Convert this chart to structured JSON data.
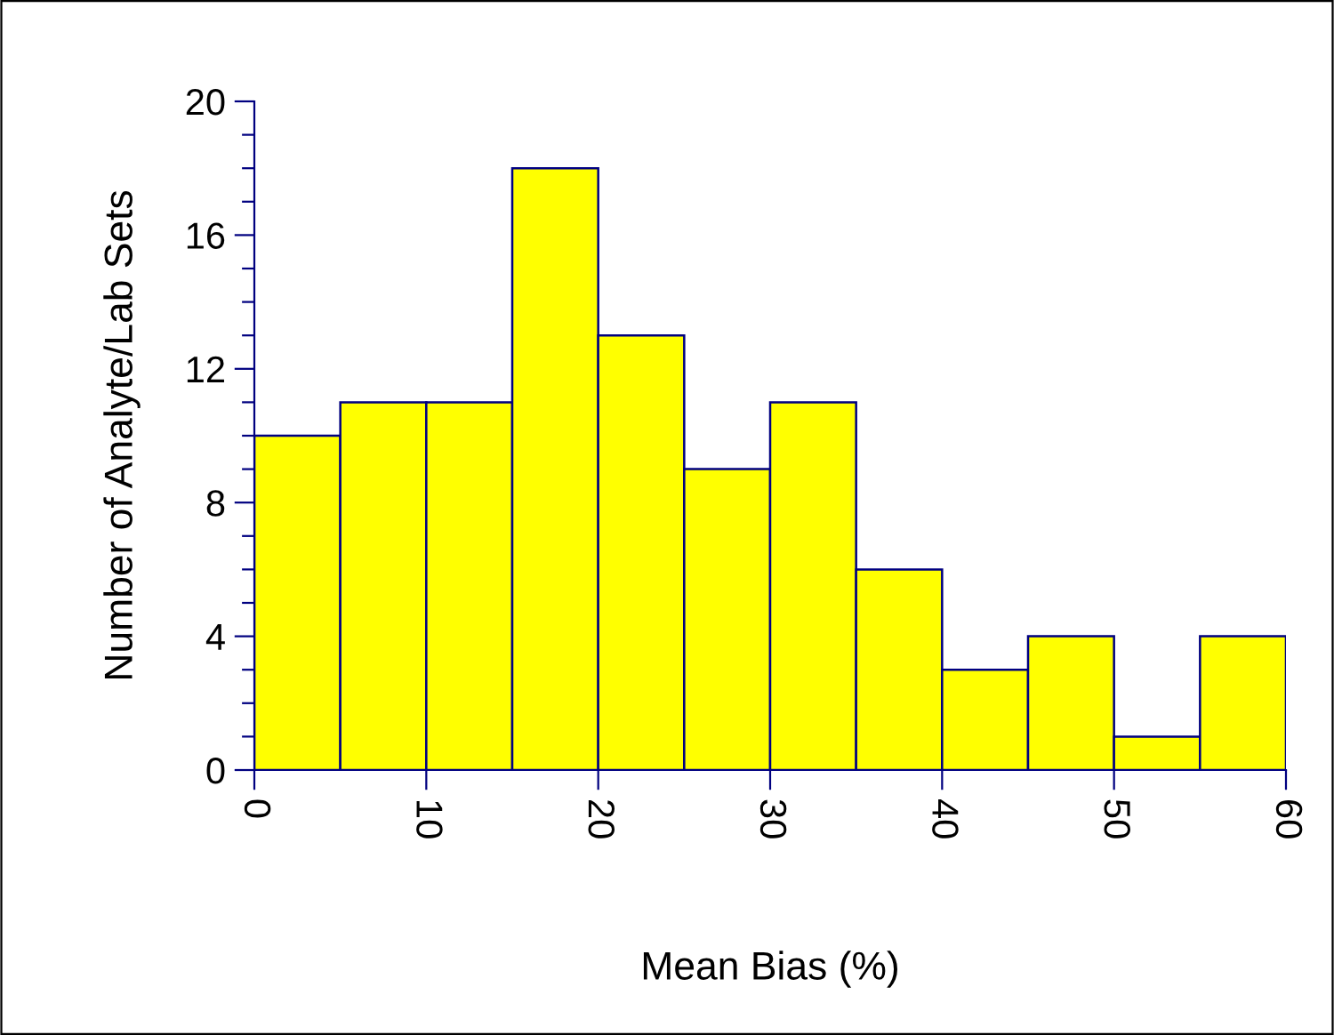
{
  "chart_data": {
    "type": "histogram",
    "xlabel": "Mean Bias (%)",
    "ylabel": "Number of Analyte/Lab Sets",
    "bins": [
      0,
      5,
      10,
      15,
      20,
      25,
      30,
      35,
      40,
      45,
      50,
      55,
      60
    ],
    "values": [
      10,
      11,
      11,
      18,
      13,
      9,
      11,
      6,
      3,
      4,
      1,
      4
    ],
    "color": "#ffff00",
    "xlim": [
      0,
      60
    ],
    "xticks": [
      0,
      10,
      20,
      30,
      40,
      50,
      60
    ],
    "ylim": [
      0,
      20
    ],
    "yticks": [
      0,
      {
        "value": 1,
        "label": null
      },
      {
        "value": 2,
        "label": null
      },
      {
        "value": 3,
        "label": null
      },
      4,
      {
        "value": 5,
        "label": null
      },
      {
        "value": 6,
        "label": null
      },
      {
        "value": 7,
        "label": null
      },
      8,
      {
        "value": 9,
        "label": null
      },
      {
        "value": 10,
        "label": null
      },
      {
        "value": 11,
        "label": null
      },
      12,
      {
        "value": 13,
        "label": null
      },
      {
        "value": 14,
        "label": null
      },
      {
        "value": 15,
        "label": null
      },
      16,
      {
        "value": 17,
        "label": null
      },
      {
        "value": 18,
        "label": null
      },
      {
        "value": 19,
        "label": null
      },
      20
    ],
    "grid": false
  }
}
